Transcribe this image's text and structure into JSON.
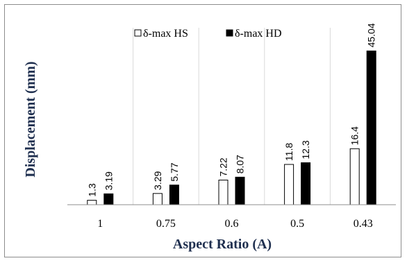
{
  "chart_data": {
    "type": "bar",
    "title": "",
    "xlabel": "Aspect Ratio (A)",
    "ylabel": "Displacement (mm)",
    "categories": [
      "1",
      "0.75",
      "0.6",
      "0.5",
      "0.43"
    ],
    "series": [
      {
        "name": "δ-max HS",
        "values": [
          1.3,
          3.29,
          7.22,
          11.8,
          16.4
        ],
        "labels": [
          "1.3",
          "3.29",
          "7.22",
          "11.8",
          "16.4"
        ],
        "color": "#ffffff",
        "stroke": "#000000"
      },
      {
        "name": "δ-max HD",
        "values": [
          3.19,
          5.77,
          8.07,
          12.3,
          45.04
        ],
        "labels": [
          "3.19",
          "5.77",
          "8.07",
          "12.3",
          "45.04"
        ],
        "color": "#000000",
        "stroke": "#000000"
      }
    ],
    "ylim": [
      0,
      50
    ],
    "grid": "vertical",
    "legend": "top-center",
    "data_labels": true
  }
}
